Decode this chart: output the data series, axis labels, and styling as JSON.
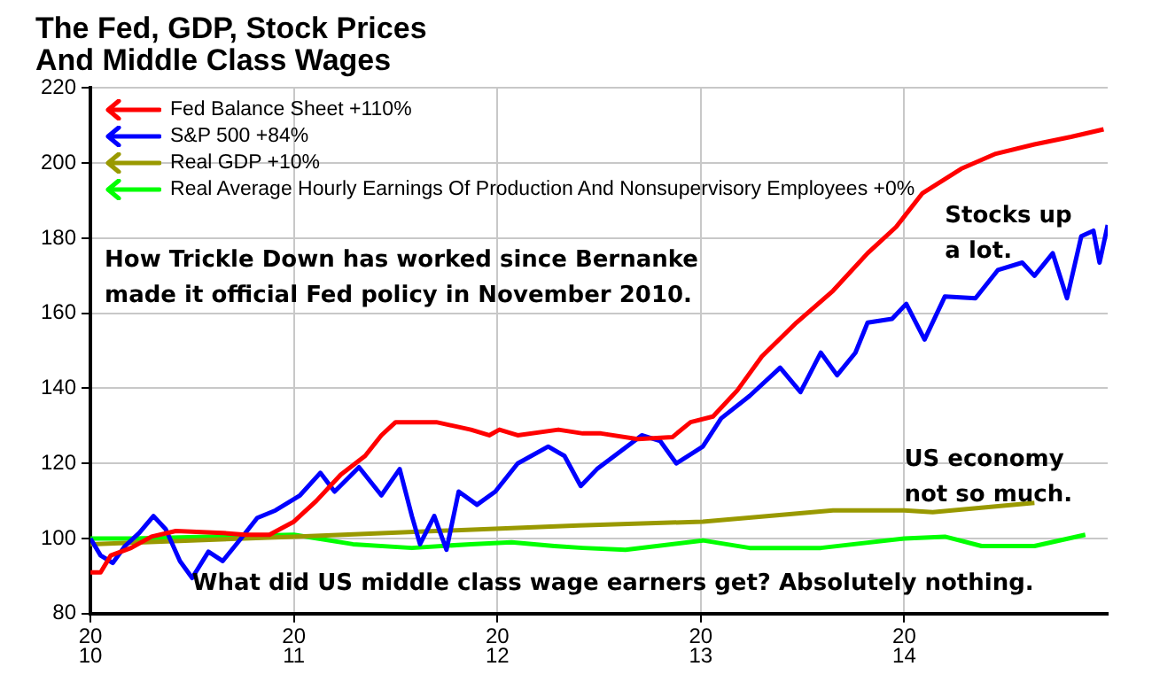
{
  "chart_data": {
    "type": "line",
    "title": "The Fed, GDP, Stock Prices\nAnd Middle Class Wages",
    "xlim": [
      2010,
      2015
    ],
    "xticks": [
      2010,
      2011,
      2012,
      2013,
      2014
    ],
    "ylim": [
      80,
      220
    ],
    "yticks": [
      80,
      100,
      120,
      140,
      160,
      180,
      200,
      220
    ],
    "grid": true,
    "legend": "top left",
    "marker": "none",
    "line_style": "solid",
    "annotations": [
      "How Trickle Down has worked since Bernanke\nmade it official Fed policy in November 2010.",
      "Stocks up\na lot.",
      "US economy\nnot so much.",
      "What did US middle class wage earners get? Absolutely nothing."
    ],
    "series": [
      {
        "name": "Fed Balance Sheet +110%",
        "color": "#ff0000",
        "x": [
          2010,
          2010.05,
          2010.1,
          2010.2,
          2010.3,
          2010.42,
          2010.65,
          2010.76,
          2010.88,
          2011,
          2011.11,
          2011.23,
          2011.35,
          2011.43,
          2011.5,
          2011.7,
          2011.87,
          2011.96,
          2012.01,
          2012.1,
          2012.3,
          2012.42,
          2012.51,
          2012.69,
          2012.86,
          2012.95,
          2013.06,
          2013.18,
          2013.3,
          2013.47,
          2013.65,
          2013.82,
          2013.96,
          2014.09,
          2014.28,
          2014.45,
          2014.64,
          2014.82,
          2014.98
        ],
        "values": [
          91,
          91,
          95.5,
          97.5,
          100.5,
          102,
          101.5,
          101,
          101,
          104.5,
          110,
          117,
          122,
          127.5,
          131,
          131,
          129,
          127.5,
          129,
          127.5,
          129,
          128,
          128,
          126.5,
          127,
          131,
          132.5,
          139.5,
          148.5,
          157.5,
          166,
          176,
          183,
          192,
          198.5,
          202.5,
          205,
          207,
          209
        ]
      },
      {
        "name": "S&P 500 +84%",
        "color": "#0000ff",
        "x": [
          2010,
          2010.05,
          2010.11,
          2010.17,
          2010.24,
          2010.31,
          2010.37,
          2010.44,
          2010.5,
          2010.58,
          2010.65,
          2010.74,
          2010.82,
          2010.91,
          2011.03,
          2011.13,
          2011.2,
          2011.32,
          2011.43,
          2011.52,
          2011.58,
          2011.62,
          2011.69,
          2011.75,
          2011.81,
          2011.9,
          2011.99,
          2012.1,
          2012.25,
          2012.33,
          2012.41,
          2012.49,
          2012.6,
          2012.71,
          2012.8,
          2012.88,
          2013.01,
          2013.1,
          2013.24,
          2013.39,
          2013.49,
          2013.59,
          2013.67,
          2013.76,
          2013.82,
          2013.94,
          2014.01,
          2014.1,
          2014.2,
          2014.35,
          2014.46,
          2014.58,
          2014.64,
          2014.73,
          2014.8,
          2014.87,
          2014.93,
          2014.96,
          2015
        ],
        "values": [
          100,
          95.5,
          93.5,
          98,
          101.5,
          106,
          102.5,
          94,
          89.5,
          96.5,
          94,
          100,
          105.5,
          107.5,
          111.5,
          117.5,
          112.5,
          119,
          111.5,
          118.5,
          106,
          98.5,
          106,
          97,
          112.5,
          109,
          112.5,
          120,
          124.5,
          122,
          114,
          118.5,
          123,
          127.5,
          126,
          120,
          124.5,
          132,
          138,
          145.5,
          139,
          149.5,
          143.5,
          149.5,
          157.5,
          158.5,
          162.5,
          153,
          164.5,
          164,
          171.5,
          173.5,
          170,
          176,
          164,
          180.5,
          182,
          173.5,
          183.5
        ]
      },
      {
        "name": "Real GDP +10%",
        "color": "#999900",
        "x": [
          2010,
          2011,
          2012.4,
          2013.01,
          2013.65,
          2014,
          2014.14,
          2014.64
        ],
        "values": [
          98.5,
          100.5,
          103.5,
          104.5,
          107.5,
          107.5,
          107,
          109.5
        ]
      },
      {
        "name": "Real Average Hourly Earnings Of Production And Nonsupervisory Employees +0%",
        "color": "#00ff00",
        "x": [
          2010,
          2010.21,
          2011,
          2011.29,
          2011.58,
          2011.87,
          2012.07,
          2012.28,
          2012.42,
          2012.63,
          2013.01,
          2013.24,
          2013.59,
          2014,
          2014.2,
          2014.38,
          2014.64,
          2014.89
        ],
        "values": [
          100,
          100,
          101,
          98.5,
          97.5,
          98.5,
          99,
          98,
          97.5,
          97,
          99.5,
          97.5,
          97.5,
          100,
          100.5,
          98,
          98,
          101
        ]
      }
    ]
  }
}
